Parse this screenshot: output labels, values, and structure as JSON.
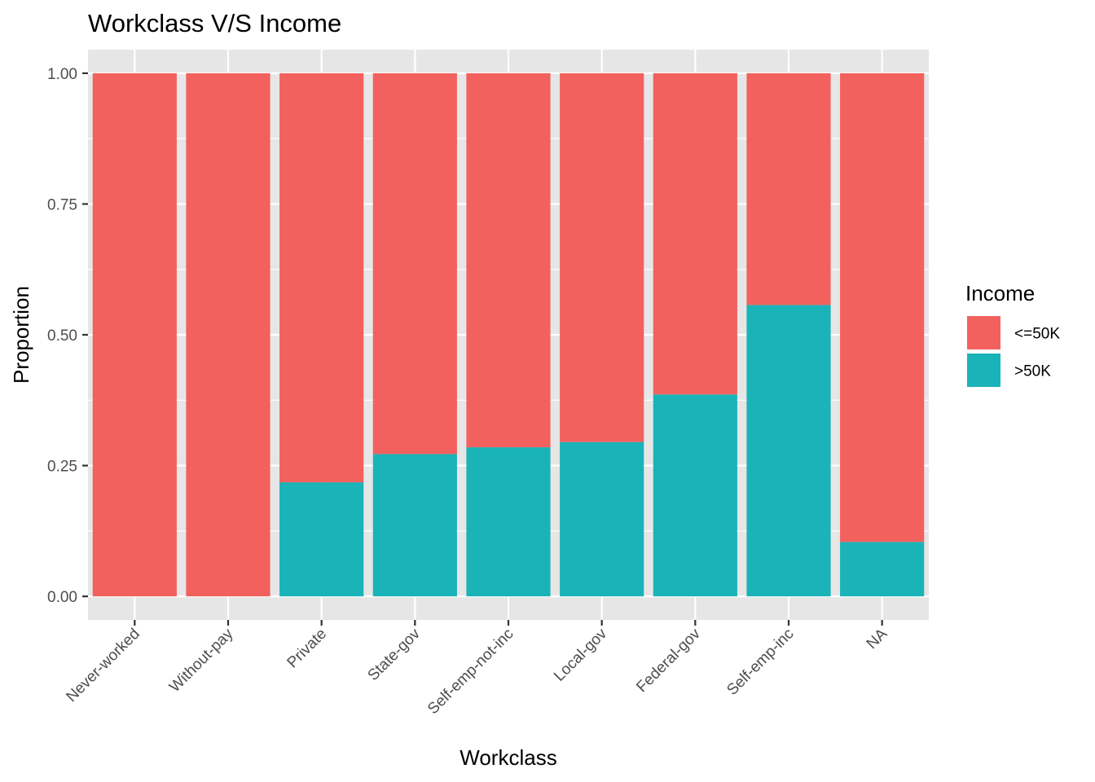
{
  "chart_data": {
    "type": "bar",
    "stacked": true,
    "title": "Workclass V/S Income",
    "xlabel": "Workclass",
    "ylabel": "Proportion",
    "ylim": [
      -0.045,
      1.045
    ],
    "yticks": [
      0.0,
      0.25,
      0.5,
      0.75,
      1.0
    ],
    "ytick_labels": [
      "0.00",
      "0.25",
      "0.50",
      "0.75",
      "1.00"
    ],
    "categories": [
      "Never-worked",
      "Without-pay",
      "Private",
      "State-gov",
      "Self-emp-not-inc",
      "Local-gov",
      "Federal-gov",
      "Self-emp-inc",
      "NA"
    ],
    "series": [
      {
        "name": ">50K",
        "color": "#1AB3B8",
        "values": [
          0.0,
          0.0,
          0.218,
          0.272,
          0.285,
          0.295,
          0.386,
          0.557,
          0.104
        ]
      },
      {
        "name": "<=50K",
        "color": "#F2615E",
        "values": [
          1.0,
          1.0,
          0.782,
          0.728,
          0.715,
          0.705,
          0.614,
          0.443,
          0.896
        ]
      }
    ],
    "legend": {
      "title": "Income",
      "position": "right",
      "entries": [
        {
          "label": "<=50K",
          "color": "#F2615E"
        },
        {
          "label": ">50K",
          "color": "#1AB3B8"
        }
      ]
    },
    "grid": true,
    "panel_background": "#E6E6E6",
    "grid_color": "#FFFFFF"
  }
}
